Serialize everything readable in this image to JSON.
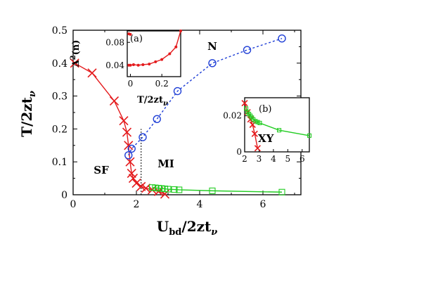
{
  "chart_data": [
    {
      "type": "line",
      "panel": "main",
      "xlabel": "U_bd/2zt_ν",
      "ylabel": "T/2zt_ν",
      "xlim": [
        0,
        7.2
      ],
      "ylim": [
        0,
        0.5
      ],
      "xticks": [
        "0",
        "2",
        "4",
        "6"
      ],
      "yticks": [
        "0",
        "0.1",
        "0.2",
        "0.3",
        "0.4",
        "0.5"
      ],
      "regions": [
        "SF",
        "MI",
        "N"
      ],
      "series": [
        {
          "marker": "x",
          "color": "#e41a1c",
          "style": "solid",
          "points": [
            [
              0.05,
              0.4
            ],
            [
              0.6,
              0.37
            ],
            [
              1.3,
              0.285
            ],
            [
              1.6,
              0.225
            ],
            [
              1.7,
              0.19
            ],
            [
              1.75,
              0.15
            ],
            [
              1.8,
              0.1
            ],
            [
              1.85,
              0.065
            ],
            [
              1.9,
              0.05
            ],
            [
              2.0,
              0.035
            ],
            [
              2.15,
              0.025
            ],
            [
              2.3,
              0.02
            ],
            [
              2.5,
              0.015
            ],
            [
              2.7,
              0.01
            ],
            [
              2.9,
              0.002
            ]
          ]
        },
        {
          "marker": "o",
          "color": "#1f3fd6",
          "style": "dotted",
          "points": [
            [
              1.75,
              0.12
            ],
            [
              1.85,
              0.14
            ],
            [
              2.2,
              0.175
            ],
            [
              2.65,
              0.23
            ],
            [
              3.3,
              0.315
            ],
            [
              4.4,
              0.4
            ],
            [
              5.5,
              0.44
            ],
            [
              6.6,
              0.475
            ]
          ]
        },
        {
          "marker": "square",
          "color": "#22cc22",
          "style": "solid",
          "points": [
            [
              2.5,
              0.022
            ],
            [
              2.6,
              0.021
            ],
            [
              2.7,
              0.02
            ],
            [
              2.8,
              0.019
            ],
            [
              2.9,
              0.018
            ],
            [
              3.0,
              0.017
            ],
            [
              3.2,
              0.016
            ],
            [
              3.35,
              0.015
            ],
            [
              4.4,
              0.012
            ],
            [
              6.6,
              0.008
            ]
          ]
        }
      ],
      "reference_line": {
        "x": 2.15,
        "y0": 0,
        "y1": 0.2,
        "style": "dotted"
      }
    },
    {
      "type": "line",
      "panel": "inset-a",
      "label": "(a)",
      "xlabel": "T/2zt_ν",
      "ylabel": "Δ²(n)",
      "xlim": [
        -0.02,
        0.32
      ],
      "ylim": [
        0.02,
        0.1
      ],
      "xticks": [
        "0",
        "0.2"
      ],
      "yticks": [
        "0.04",
        "0.08"
      ],
      "series": [
        {
          "marker": "dot",
          "color": "#e41a1c",
          "style": "solid",
          "points": [
            [
              -0.01,
              0.04
            ],
            [
              0.0,
              0.04
            ],
            [
              0.02,
              0.041
            ],
            [
              0.05,
              0.04
            ],
            [
              0.08,
              0.041
            ],
            [
              0.12,
              0.042
            ],
            [
              0.16,
              0.046
            ],
            [
              0.2,
              0.05
            ],
            [
              0.25,
              0.06
            ],
            [
              0.29,
              0.072
            ],
            [
              0.32,
              0.1
            ]
          ]
        },
        {
          "marker": "dot",
          "color": "#e41a1c",
          "style": "solid",
          "points": [
            [
              -0.01,
              0.095
            ],
            [
              0.0,
              0.094
            ]
          ]
        }
      ]
    },
    {
      "type": "line",
      "panel": "inset-b",
      "label": "(b)",
      "region": "XY",
      "xlim": [
        2,
        6.5
      ],
      "ylim": [
        0,
        0.03
      ],
      "xticks": [
        "2",
        "3",
        "4",
        "5",
        "6"
      ],
      "yticks": [
        "0",
        "0.02"
      ],
      "series": [
        {
          "marker": "x",
          "color": "#e41a1c",
          "style": "solid",
          "points": [
            [
              2.0,
              0.027
            ],
            [
              2.2,
              0.022
            ],
            [
              2.4,
              0.018
            ],
            [
              2.55,
              0.015
            ],
            [
              2.7,
              0.01
            ],
            [
              2.9,
              0.002
            ]
          ]
        },
        {
          "marker": "square",
          "color": "#22cc22",
          "style": "solid",
          "points": [
            [
              2.1,
              0.024
            ],
            [
              2.2,
              0.022
            ],
            [
              2.3,
              0.021
            ],
            [
              2.4,
              0.02
            ],
            [
              2.5,
              0.019
            ],
            [
              2.6,
              0.018
            ],
            [
              2.75,
              0.017
            ],
            [
              2.9,
              0.0165
            ],
            [
              3.05,
              0.016
            ],
            [
              4.4,
              0.012
            ],
            [
              6.5,
              0.009
            ]
          ]
        }
      ]
    }
  ]
}
